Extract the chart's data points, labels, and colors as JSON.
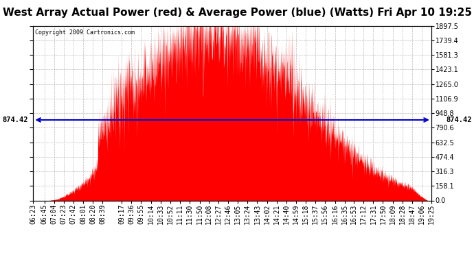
{
  "title": "West Array Actual Power (red) & Average Power (blue) (Watts) Fri Apr 10 19:25",
  "copyright_text": "Copyright 2009 Cartronics.com",
  "avg_power": 874.42,
  "y_max": 1897.5,
  "y_min": 0.0,
  "y_ticks": [
    0.0,
    158.1,
    316.3,
    474.4,
    632.5,
    790.6,
    948.8,
    1106.9,
    1265.0,
    1423.1,
    1581.3,
    1739.4,
    1897.5
  ],
  "x_ticks_labels": [
    "06:23",
    "06:45",
    "07:04",
    "07:23",
    "07:42",
    "08:01",
    "08:20",
    "08:39",
    "09:17",
    "09:36",
    "09:55",
    "10:14",
    "10:33",
    "10:52",
    "11:11",
    "11:30",
    "11:50",
    "12:08",
    "12:27",
    "12:46",
    "13:05",
    "13:24",
    "13:43",
    "14:02",
    "14:21",
    "14:40",
    "14:59",
    "15:18",
    "15:37",
    "15:56",
    "16:16",
    "16:35",
    "16:53",
    "17:12",
    "17:31",
    "17:50",
    "18:09",
    "18:28",
    "18:47",
    "19:06",
    "19:25"
  ],
  "bg_color": "#ffffff",
  "grid_color": "#aaaaaa",
  "fill_color": "#ff0000",
  "line_color": "#0000cc",
  "title_fontsize": 11,
  "tick_fontsize": 7,
  "copyright_fontsize": 6
}
